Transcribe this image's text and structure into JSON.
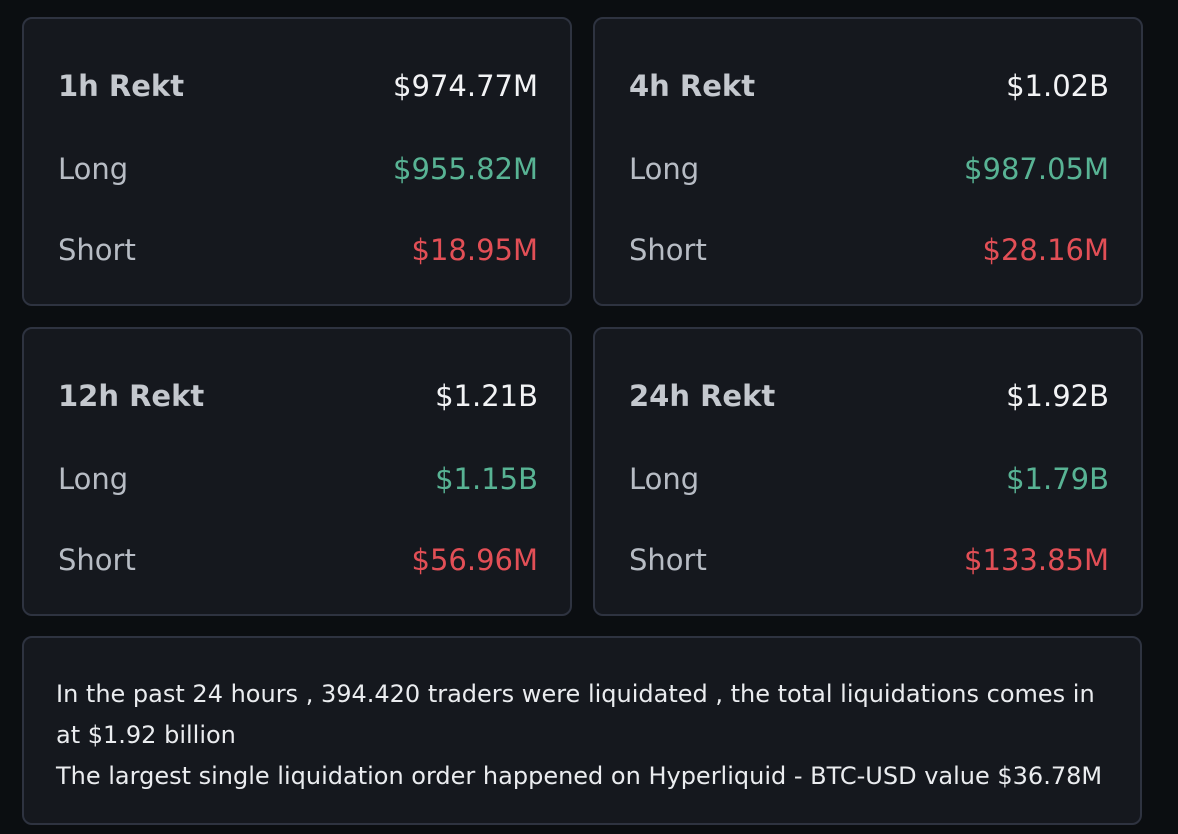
{
  "cards": [
    {
      "title": "1h Rekt",
      "total": "$974.77M",
      "long_label": "Long",
      "long_value": "$955.82M",
      "short_label": "Short",
      "short_value": "$18.95M"
    },
    {
      "title": "4h Rekt",
      "total": "$1.02B",
      "long_label": "Long",
      "long_value": "$987.05M",
      "short_label": "Short",
      "short_value": "$28.16M"
    },
    {
      "title": "12h Rekt",
      "total": "$1.21B",
      "long_label": "Long",
      "long_value": "$1.15B",
      "short_label": "Short",
      "short_value": "$56.96M"
    },
    {
      "title": "24h Rekt",
      "total": "$1.92B",
      "long_label": "Long",
      "long_value": "$1.79B",
      "short_label": "Short",
      "short_value": "$133.85M"
    }
  ],
  "summary": {
    "line1": "In the past 24 hours , 394.420 traders were liquidated , the total liquidations comes in at $1.92 billion",
    "line2": "The largest single liquidation order happened on Hyperliquid - BTC-USD value $36.78M"
  },
  "colors": {
    "long": "#58b394",
    "short": "#e24f56",
    "background": "#0b0e11",
    "card": "#15181e"
  }
}
